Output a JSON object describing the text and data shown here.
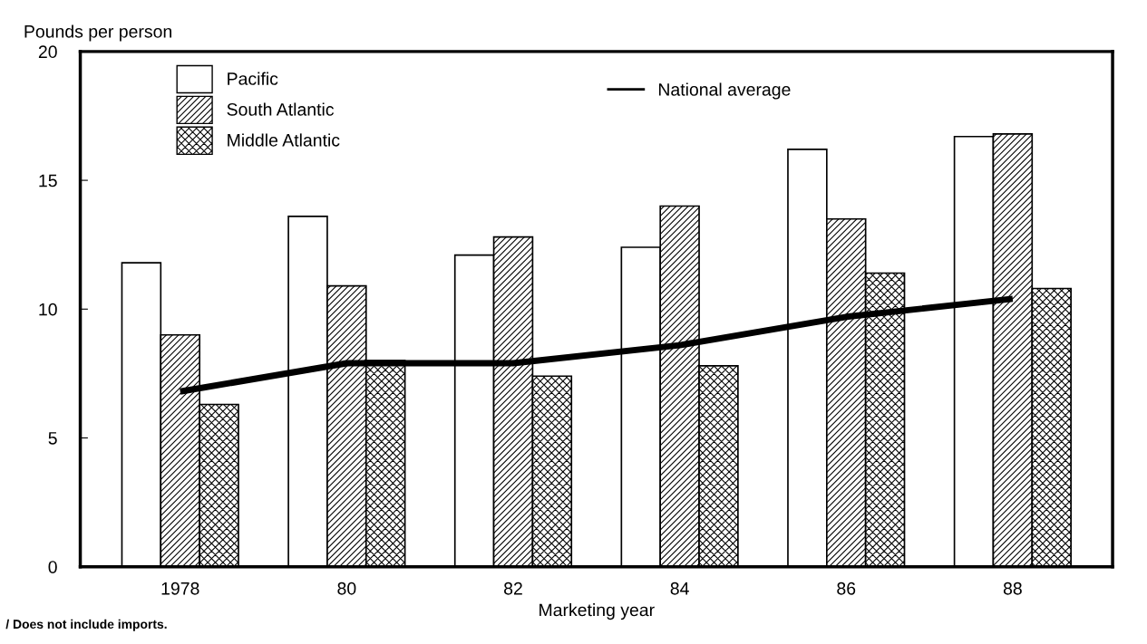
{
  "chart_data": {
    "type": "bar",
    "ylabel": "Pounds per person",
    "xlabel": "Marketing year",
    "categories": [
      "1978",
      "80",
      "82",
      "84",
      "86",
      "88"
    ],
    "series": [
      {
        "name": "Pacific",
        "color": "#ffffff",
        "values": [
          11.8,
          13.6,
          12.1,
          12.4,
          16.2,
          16.7
        ]
      },
      {
        "name": "South Atlantic",
        "color": "#000000",
        "values": [
          9.0,
          10.9,
          12.8,
          14.0,
          13.5,
          16.8
        ]
      },
      {
        "name": "Middle Atlantic",
        "color": "#000000",
        "values": [
          6.3,
          8.0,
          7.4,
          7.8,
          11.4,
          10.8
        ]
      },
      {
        "name": "National average",
        "type": "line",
        "color": "#000000",
        "values": [
          6.8,
          7.9,
          7.9,
          8.6,
          9.7,
          10.4
        ]
      }
    ],
    "ylim": [
      0,
      20
    ],
    "yticks": [
      0,
      5,
      10,
      15,
      20
    ],
    "grid": false,
    "legend": "top left",
    "annotations": [
      "/ Does not include imports."
    ]
  }
}
